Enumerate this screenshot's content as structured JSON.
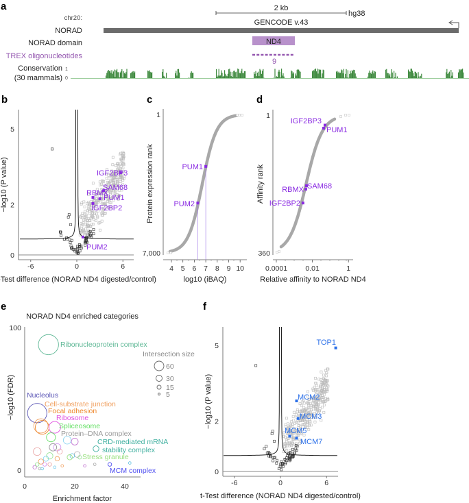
{
  "panel_labels": [
    "a",
    "b",
    "c",
    "d",
    "e",
    "f"
  ],
  "panel_a": {
    "chrom": "chr20:",
    "scale_label": "2 kb",
    "assembly": "hg38",
    "annotation": "GENCODE v.43",
    "tracks": [
      "NORAD",
      "NORAD domain",
      "TREX oligonucleotides",
      "Conservation",
      "(30 mammals)"
    ],
    "domain_label": "ND4",
    "oligo_count": "9",
    "cons_ticks": [
      "1",
      "0"
    ],
    "colors": {
      "gene": "#6b6b6b",
      "domain": "#b891cb",
      "oligo": "#9457b0",
      "conservation": "#3f8a3f"
    }
  },
  "chart_data": [
    {
      "id": "b",
      "type": "scatter",
      "xlabel": "t-Test difference (NORAD ND4 digested/control)",
      "ylabel": "−log10 (P value)",
      "xticks": [
        "-6",
        "0",
        "6"
      ],
      "yticks": [
        "5",
        "2",
        "0"
      ],
      "xlim": [
        -7.5,
        7.5
      ],
      "ylim": [
        -0.2,
        5.9
      ],
      "highlight_color": "#8a2be2",
      "highlighted": [
        {
          "label": "IGF2BP3",
          "x": 5.7,
          "y": 3.26
        },
        {
          "label": "SAM68",
          "x": 3.5,
          "y": 2.55
        },
        {
          "label": "RBMX",
          "x": 2.1,
          "y": 2.28
        },
        {
          "label": "PUM1",
          "x": 3.0,
          "y": 2.23
        },
        {
          "label": "IGF2BP2",
          "x": 2.1,
          "y": 2.04
        },
        {
          "label": "PUM2",
          "x": 0.8,
          "y": 0.71
        }
      ]
    },
    {
      "id": "c",
      "type": "scatter",
      "xlabel": "log10 (iBAQ)",
      "ylabel": "Protein expression rank",
      "xticks": [
        "4",
        "5",
        "6",
        "7",
        "8",
        "9",
        "10"
      ],
      "yticks": [
        "1",
        "7,000"
      ],
      "xlim": [
        3.5,
        10.5
      ],
      "ylim": [
        7000,
        1
      ],
      "highlighted": [
        {
          "label": "PUM1",
          "x": 7.0,
          "y": 2630
        },
        {
          "label": "PUM2",
          "x": 6.3,
          "y": 4480
        }
      ]
    },
    {
      "id": "d",
      "type": "scatter",
      "xlabel": "Relative affinity to NORAD ND4",
      "ylabel": "Affinity rank",
      "xticks": [
        "0.0001",
        "0.01",
        "1"
      ],
      "yticks": [
        "1",
        "360"
      ],
      "xscale": "log",
      "xlim": [
        0.0001,
        1
      ],
      "ylim": [
        360,
        1
      ],
      "highlighted": [
        {
          "label": "IGF2BP3",
          "x": 0.05,
          "y": 27
        },
        {
          "label": "PUM1",
          "x": 0.042,
          "y": 35
        },
        {
          "label": "SAM68",
          "x": 0.0047,
          "y": 185
        },
        {
          "label": "RBMX",
          "x": 0.0043,
          "y": 194
        },
        {
          "label": "IGF2BP2",
          "x": 0.003,
          "y": 230
        }
      ]
    },
    {
      "id": "e",
      "type": "scatter",
      "title": "NORAD ND4 enriched categories",
      "xlabel": "Enrichment factor",
      "ylabel": "−log10 (FDR)",
      "xticks": [
        "0",
        "20",
        "40"
      ],
      "yticks": [
        "100",
        "0"
      ],
      "xlim": [
        0,
        45
      ],
      "ylim": [
        -5,
        100
      ],
      "legend_title": "Intersection size",
      "legend_sizes": [
        "60",
        "30",
        "15",
        "5"
      ],
      "categories": [
        {
          "label": "Ribonucleoprotein complex",
          "x": 9.5,
          "y": 88,
          "size": 60,
          "color": "#5fb896"
        },
        {
          "label": "Nucleolus",
          "x": 5,
          "y": 40,
          "size": 55,
          "color": "#5a55b5"
        },
        {
          "label": "Cell-substrate junction",
          "x": 6.5,
          "y": 31,
          "size": 30,
          "color": "#f0a060"
        },
        {
          "label": "Focal adhesion",
          "x": 7,
          "y": 30,
          "size": 28,
          "color": "#ee8a30"
        },
        {
          "label": "Ribosome",
          "x": 12,
          "y": 30,
          "size": 20,
          "color": "#e050e0"
        },
        {
          "label": "Spliceosome",
          "x": 10.5,
          "y": 23,
          "size": 12,
          "color": "#66e066"
        },
        {
          "label": "Protein–DNA complex",
          "x": 11.3,
          "y": 16,
          "size": 8,
          "color": "#999999"
        },
        {
          "label": "CRD-mediated mRNA",
          "label2": "stability complex",
          "x": 28.5,
          "y": 15,
          "size": 5,
          "color": "#40b0a0"
        },
        {
          "label": "Stress granule",
          "x": 18,
          "y": 9,
          "size": 4,
          "color": "#99e080"
        },
        {
          "label": "MCM complex",
          "x": 34,
          "y": 4,
          "size": 2,
          "color": "#5050f0"
        }
      ]
    },
    {
      "id": "f",
      "type": "scatter",
      "xlabel": "t-Test difference (NORAD ND4 digested/control)",
      "ylabel": "−log10 (P value)",
      "xticks": [
        "-6",
        "0",
        "6"
      ],
      "yticks": [
        "5",
        "2",
        "0"
      ],
      "xlim": [
        -7.5,
        7.5
      ],
      "ylim": [
        -0.2,
        5.9
      ],
      "highlight_color": "#2a6fe8",
      "highlighted": [
        {
          "label": "TOP1",
          "x": 7.2,
          "y": 4.9
        },
        {
          "label": "MCM2",
          "x": 2.1,
          "y": 2.8
        },
        {
          "label": "MCM3",
          "x": 2.3,
          "y": 2.1
        },
        {
          "label": "MCM5",
          "x": 1.2,
          "y": 1.4
        },
        {
          "label": "MCM7",
          "x": 2.1,
          "y": 1.32
        }
      ]
    }
  ]
}
